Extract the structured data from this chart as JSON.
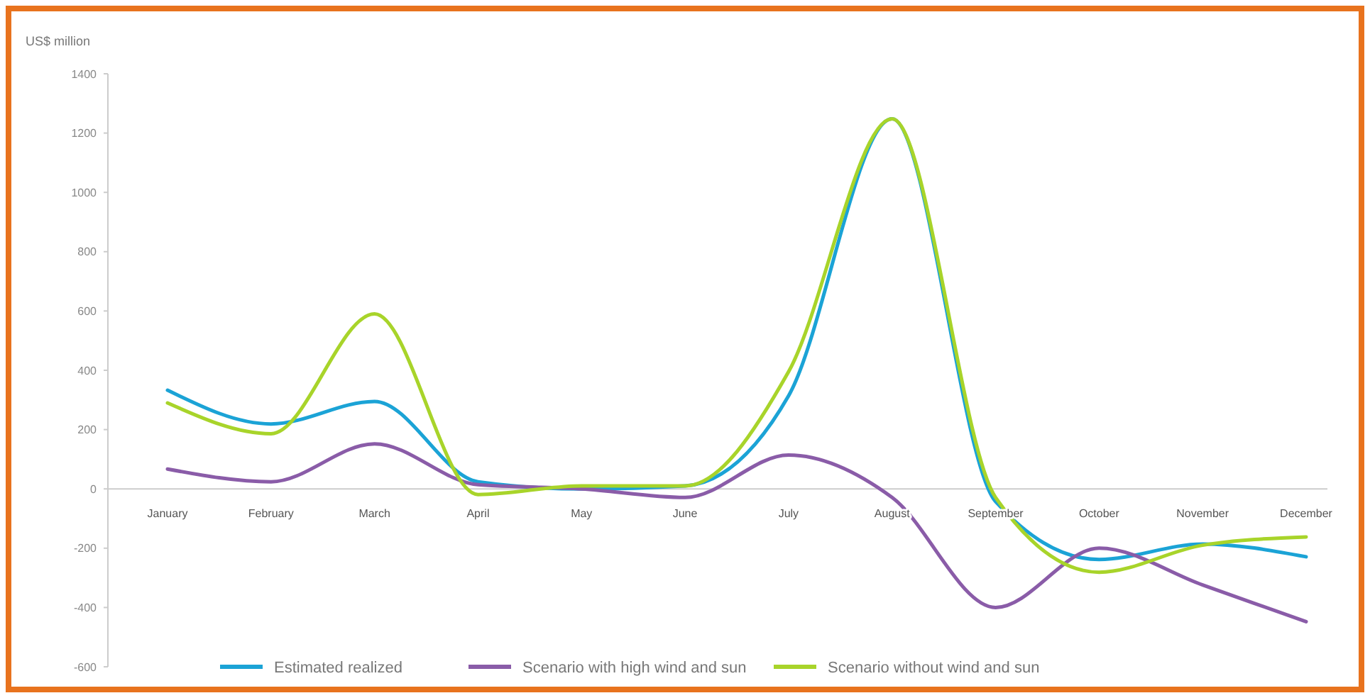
{
  "chart_data": {
    "type": "line",
    "ylabel": "US$ million",
    "categories": [
      "January",
      "February",
      "March",
      "April",
      "May",
      "June",
      "July",
      "August",
      "September",
      "October",
      "November",
      "December"
    ],
    "series": [
      {
        "name": "Estimated realized",
        "color": "#1ba3d6",
        "values": [
          333,
          219,
          295,
          24,
          0,
          10,
          314,
          1248,
          -43,
          -238,
          -186,
          -229
        ]
      },
      {
        "name": "Scenario with high wind and sun",
        "color": "#8a5ca8",
        "values": [
          67,
          24,
          152,
          14,
          0,
          -29,
          114,
          -29,
          -400,
          -200,
          -324,
          -448
        ]
      },
      {
        "name": "Scenario without wind and sun",
        "color": "#a8d42a",
        "values": [
          290,
          186,
          590,
          -19,
          10,
          10,
          395,
          1248,
          -29,
          -281,
          -190,
          -162
        ]
      }
    ],
    "ylim": [
      -600,
      1400
    ],
    "yticks": [
      -600,
      -400,
      -200,
      0,
      200,
      400,
      600,
      800,
      1000,
      1200,
      1400
    ],
    "grid": false,
    "legend": "bottom",
    "marker": "none",
    "line_style": "solid"
  }
}
